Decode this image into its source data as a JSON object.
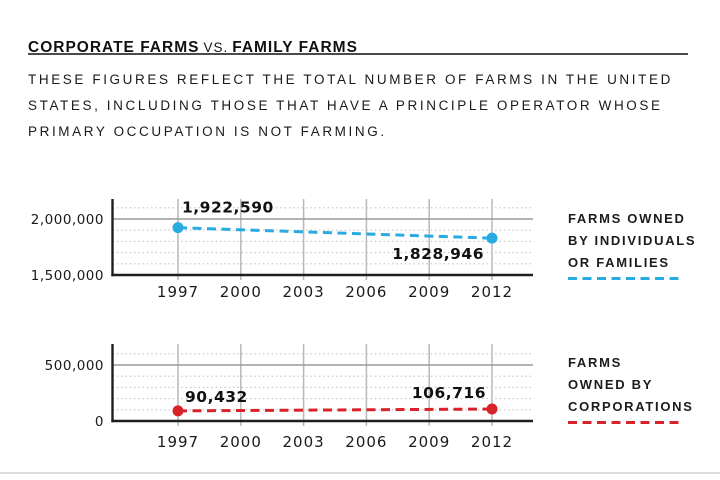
{
  "header": {
    "title_left": "CORPORATE FARMS",
    "title_vs": "VS.",
    "title_right": "FAMILY FARMS",
    "description_lines": [
      "THESE FIGURES REFLECT THE TOTAL NUMBER OF FARMS IN THE UNITED",
      "STATES, INCLUDING THOSE THAT HAVE A PRINCIPLE OPERATOR WHOSE",
      "PRIMARY OCCUPATION IS NOT FARMING."
    ]
  },
  "colors": {
    "blue": "#29abe2",
    "red": "#d8232a",
    "axis": "#1f1f1f",
    "grid_solid": "#9a9a9a",
    "grid_dotted": "#c4c4c4",
    "grid_vertical": "#b8b8b8"
  },
  "chart_data": [
    {
      "type": "line",
      "line_style": "dashed",
      "x_ticks": [
        1997,
        2000,
        2003,
        2006,
        2009,
        2012
      ],
      "y_ticks": [
        2000000,
        1500000
      ],
      "y_tick_labels": [
        "2,000,000",
        "1,500,000"
      ],
      "ylim": [
        1500000,
        2150000
      ],
      "grid_interval": 100000,
      "series": [
        {
          "name": "Farms owned by individuals or families",
          "color_key": "blue",
          "x": [
            1997,
            2012
          ],
          "values": [
            1922590,
            1828946
          ],
          "point_labels": [
            "1,922,590",
            "1,828,946"
          ]
        }
      ],
      "legend": {
        "lines": [
          "FARMS OWNED",
          "BY INDIVIDUALS",
          "OR FAMILIES"
        ]
      }
    },
    {
      "type": "line",
      "line_style": "dashed",
      "x_ticks": [
        1997,
        2000,
        2003,
        2006,
        2009,
        2012
      ],
      "y_ticks": [
        500000,
        0
      ],
      "y_tick_labels": [
        "500,000",
        "0"
      ],
      "ylim": [
        0,
        650000
      ],
      "grid_interval": 100000,
      "series": [
        {
          "name": "Farms owned by corporations",
          "color_key": "red",
          "x": [
            1997,
            2012
          ],
          "values": [
            90432,
            106716
          ],
          "point_labels": [
            "90,432",
            "106,716"
          ]
        }
      ],
      "legend": {
        "lines": [
          "FARMS",
          "OWNED BY",
          "CORPORATIONS"
        ]
      }
    }
  ]
}
